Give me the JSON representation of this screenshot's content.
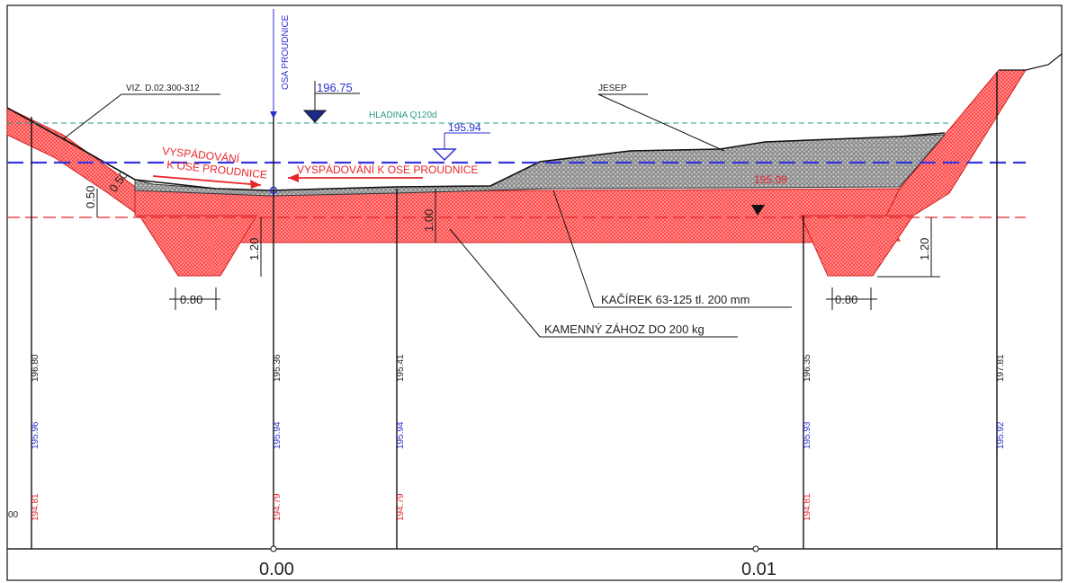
{
  "drawing": {
    "labels": {
      "axis_flow": "OSA PROUDNICE",
      "ref_left": "VIZ. D.02.300-312",
      "jesep": "JESEP",
      "hladina": "HLADINA Q120d",
      "level_top": "196.75",
      "level_water": "195.94",
      "level_right_red": "195.09",
      "slope_left_1": "VYSPÁDOVÁNÍ",
      "slope_left_2": "K OSE PROUDNICE",
      "slope_mid": "VYSPÁDOVÁNÍ K OSE PROUDNICE",
      "kacirek": "KAČÍREK 63-125 tl. 200 mm",
      "kamenny": "KAMENNÝ ZÁHOZ DO 200 kg",
      "dim_050a": "0.50",
      "dim_050b": "0.50",
      "dim_120_left": "1.20",
      "dim_100": "1.00",
      "dim_080_left": "0.80",
      "dim_080_right": "0.80",
      "dim_120_right": "1.20",
      "left_edge": "00"
    },
    "stations": [
      {
        "top": "196.80",
        "mid": "195.96",
        "bottom": "194.81"
      },
      {
        "top": "195.36",
        "mid": "195.94",
        "bottom": "194.79"
      },
      {
        "top": "195.41",
        "mid": "195.94",
        "bottom": "194.79"
      },
      {
        "top": "196.35",
        "mid": "195.93",
        "bottom": "194.81"
      },
      {
        "top": "197.81",
        "mid": "195.92",
        "bottom": ""
      }
    ],
    "axis": {
      "tick_000": "0.00",
      "tick_001": "0.01"
    },
    "colors": {
      "fill_red": "#ff3b3b",
      "gravel": "#9a9a9a",
      "water_blue": "#3434e0",
      "teal": "#2a9a8a",
      "ink": "#222222"
    }
  }
}
